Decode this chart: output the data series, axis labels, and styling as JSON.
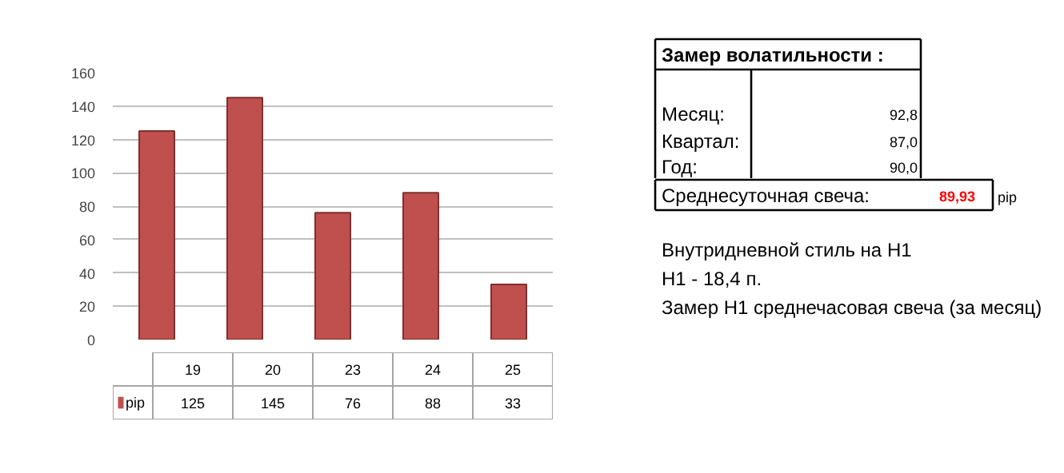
{
  "chart_data": [
    {
      "type": "bar",
      "categories": [
        "19",
        "20",
        "23",
        "24",
        "25"
      ],
      "series": [
        {
          "name": "pip",
          "color": "#c0504d",
          "values": [
            125,
            145,
            76,
            88,
            33
          ]
        }
      ],
      "ylim": [
        0,
        160
      ],
      "yticks": [
        0,
        20,
        40,
        60,
        80,
        100,
        120,
        140,
        160
      ],
      "grid": "y",
      "data_labels": true,
      "legend": "bottom left"
    },
    {
      "type": "other",
      "annotations": [
        "Замер  волатильности  :",
        "Месяц:",
        "92,8",
        "Квартал:",
        "87,0",
        "Год:",
        "90,0",
        "Среднесуточная свеча:",
        "89,93",
        "pip",
        "Внутридневной стиль на H1",
        "H1 - 18,4 п.",
        "Замер H1 среднечасовая свеча (за месяц)"
      ]
    }
  ]
}
